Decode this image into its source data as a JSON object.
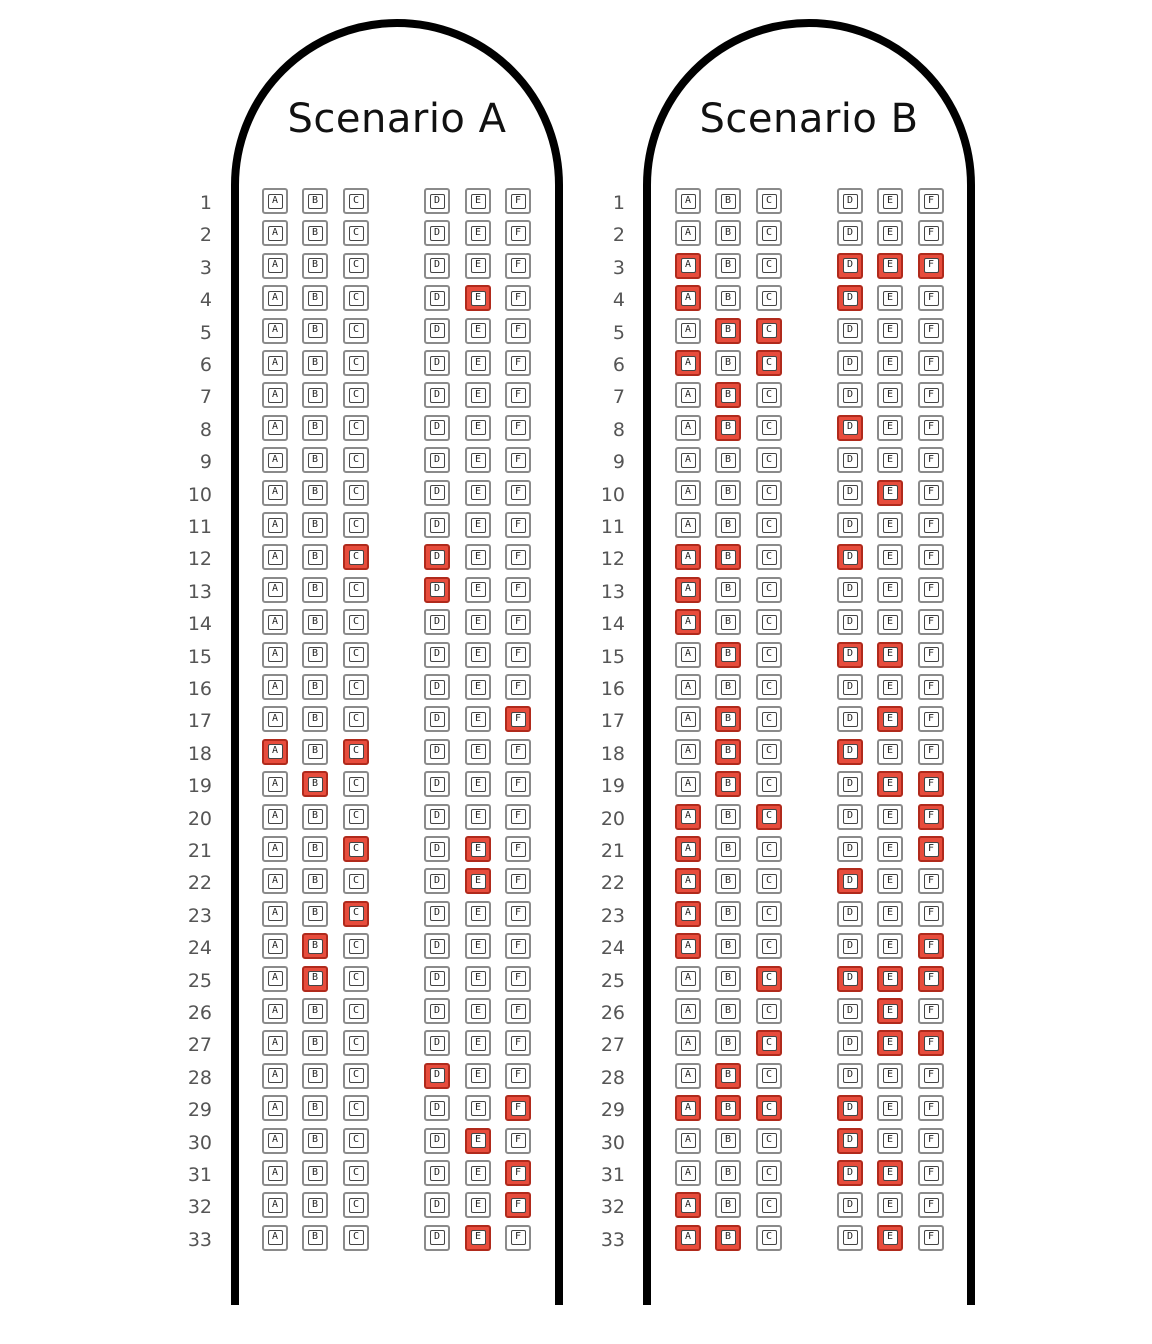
{
  "colors": {
    "occupied_fill": "#e74c3c",
    "occupied_border": "#b02a1c",
    "empty_border": "#8a8a8a",
    "fuselage": "#000000"
  },
  "seat_letters": [
    "A",
    "B",
    "C",
    "D",
    "E",
    "F"
  ],
  "rows": [
    "1",
    "2",
    "3",
    "4",
    "5",
    "6",
    "7",
    "8",
    "9",
    "10",
    "11",
    "12",
    "13",
    "14",
    "15",
    "16",
    "17",
    "18",
    "19",
    "20",
    "21",
    "22",
    "23",
    "24",
    "25",
    "26",
    "27",
    "28",
    "29",
    "30",
    "31",
    "32",
    "33"
  ],
  "scenarios": [
    {
      "title": "Scenario A",
      "occupied": {
        "4": [
          "E"
        ],
        "12": [
          "C",
          "D"
        ],
        "13": [
          "D"
        ],
        "17": [
          "F"
        ],
        "18": [
          "A",
          "C"
        ],
        "19": [
          "B"
        ],
        "21": [
          "C",
          "E"
        ],
        "22": [
          "E"
        ],
        "23": [
          "C"
        ],
        "24": [
          "B"
        ],
        "25": [
          "B"
        ],
        "28": [
          "D"
        ],
        "29": [
          "F"
        ],
        "30": [
          "E"
        ],
        "31": [
          "F"
        ],
        "32": [
          "F"
        ],
        "33": [
          "E"
        ]
      }
    },
    {
      "title": "Scenario B",
      "occupied": {
        "3": [
          "A",
          "D",
          "E",
          "F"
        ],
        "4": [
          "A",
          "D"
        ],
        "5": [
          "B",
          "C"
        ],
        "6": [
          "A",
          "C"
        ],
        "7": [
          "B"
        ],
        "8": [
          "B",
          "D"
        ],
        "10": [
          "E"
        ],
        "12": [
          "A",
          "B",
          "D"
        ],
        "13": [
          "A"
        ],
        "14": [
          "A"
        ],
        "15": [
          "B",
          "D",
          "E"
        ],
        "17": [
          "B",
          "E"
        ],
        "18": [
          "B",
          "D"
        ],
        "19": [
          "B",
          "E",
          "F"
        ],
        "20": [
          "A",
          "C",
          "F"
        ],
        "21": [
          "A",
          "F"
        ],
        "22": [
          "A",
          "D"
        ],
        "23": [
          "A"
        ],
        "24": [
          "A",
          "F"
        ],
        "25": [
          "C",
          "D",
          "E",
          "F"
        ],
        "26": [
          "E"
        ],
        "27": [
          "C",
          "E",
          "F"
        ],
        "28": [
          "B"
        ],
        "29": [
          "A",
          "B",
          "C",
          "D"
        ],
        "30": [
          "D"
        ],
        "31": [
          "D",
          "E"
        ],
        "32": [
          "A"
        ],
        "33": [
          "A",
          "B",
          "E"
        ]
      }
    }
  ]
}
